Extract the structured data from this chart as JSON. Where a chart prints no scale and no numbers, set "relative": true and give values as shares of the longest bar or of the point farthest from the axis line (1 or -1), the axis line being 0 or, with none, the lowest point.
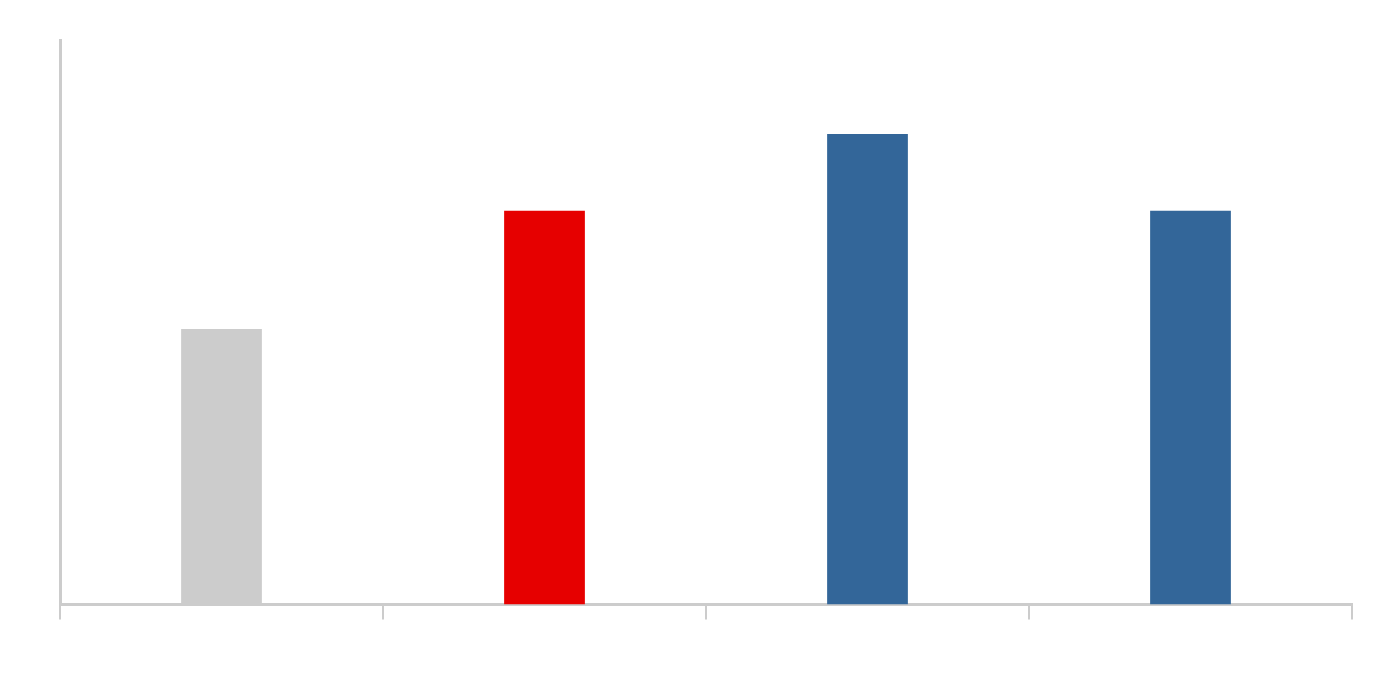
{
  "chart_data": {
    "type": "bar",
    "relative": true,
    "categories": [
      null,
      null,
      null,
      null
    ],
    "values": [
      0.586,
      0.837,
      1,
      0.837
    ],
    "colors": [
      "#cccccc",
      "#e60000",
      "#336699",
      "#336699"
    ],
    "grid": false,
    "legend": false
  }
}
